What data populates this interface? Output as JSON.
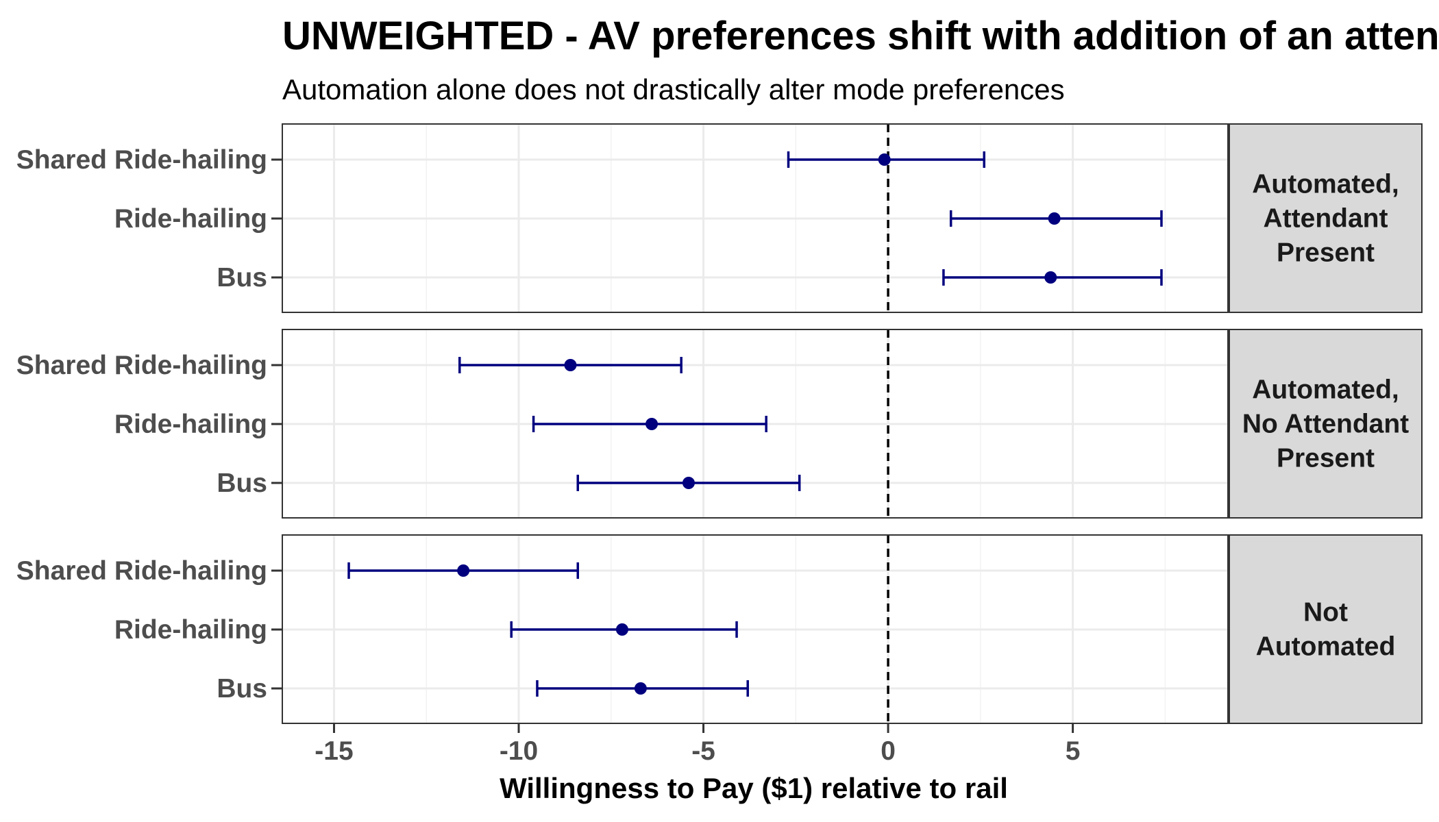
{
  "chart_data": {
    "type": "scatter",
    "title": "UNWEIGHTED - AV preferences shift with addition of an atten",
    "subtitle": "Automation alone does not drastically alter mode preferences",
    "xlabel": "Willingness to Pay ($1) relative to rail",
    "ylabel": "",
    "xlim": [
      -16.4,
      9.2
    ],
    "xticks": [
      -15,
      -10,
      -5,
      0,
      5
    ],
    "xtick_labels": [
      "-15",
      "-10",
      "-5",
      "0",
      "5"
    ],
    "reference_line": 0,
    "categories": [
      "Shared Ride-hailing",
      "Ride-hailing",
      "Bus"
    ],
    "grid": true,
    "point_color": "#00007f",
    "panels": [
      {
        "strip_lines": [
          "Automated,",
          "Attendant",
          "Present"
        ],
        "points": [
          {
            "category": "Shared Ride-hailing",
            "estimate": -0.1,
            "lower": -2.7,
            "upper": 2.6
          },
          {
            "category": "Ride-hailing",
            "estimate": 4.5,
            "lower": 1.7,
            "upper": 7.4
          },
          {
            "category": "Bus",
            "estimate": 4.4,
            "lower": 1.5,
            "upper": 7.4
          }
        ]
      },
      {
        "strip_lines": [
          "Automated,",
          "No Attendant",
          "Present"
        ],
        "points": [
          {
            "category": "Shared Ride-hailing",
            "estimate": -8.6,
            "lower": -11.6,
            "upper": -5.6
          },
          {
            "category": "Ride-hailing",
            "estimate": -6.4,
            "lower": -9.6,
            "upper": -3.3
          },
          {
            "category": "Bus",
            "estimate": -5.4,
            "lower": -8.4,
            "upper": -2.4
          }
        ]
      },
      {
        "strip_lines": [
          "Not",
          "Automated"
        ],
        "points": [
          {
            "category": "Shared Ride-hailing",
            "estimate": -11.5,
            "lower": -14.6,
            "upper": -8.4
          },
          {
            "category": "Ride-hailing",
            "estimate": -7.2,
            "lower": -10.2,
            "upper": -4.1
          },
          {
            "category": "Bus",
            "estimate": -6.7,
            "lower": -9.5,
            "upper": -3.8
          }
        ]
      }
    ]
  }
}
